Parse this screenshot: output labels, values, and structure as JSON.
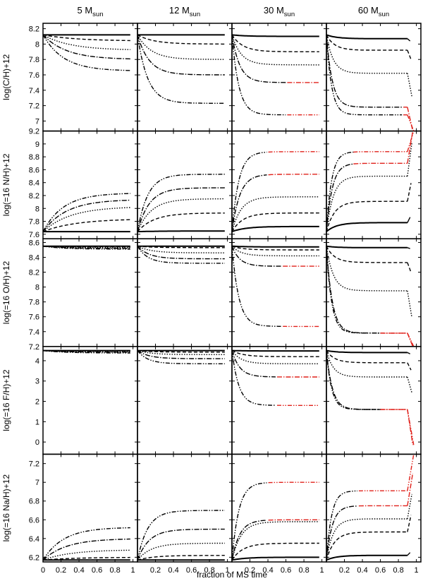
{
  "chart_data": {
    "type": "line",
    "xlabel": "fraction of MS time",
    "columns": [
      {
        "label": "5 M",
        "sub": "sun"
      },
      {
        "label": "12 M",
        "sub": "sun"
      },
      {
        "label": "30 M",
        "sub": "sun"
      },
      {
        "label": "60 M",
        "sub": "sun"
      }
    ],
    "x_ticks": [
      "0",
      "0.2",
      "0.4",
      "0.6",
      "0.8",
      "1"
    ],
    "x_range": [
      0,
      1.05
    ],
    "grid": false,
    "colors": {
      "standard": "#000000",
      "highlight": "#e0201a"
    },
    "line_styles": [
      "solid",
      "dashed",
      "dotted",
      "dashdot",
      "dashdotdot"
    ],
    "rows": [
      {
        "ylabel": "log(C/H)+12",
        "ylim": [
          6.87,
          8.27
        ],
        "yticks": [
          "7",
          "7.2",
          "7.4",
          "7.6",
          "7.8",
          "8",
          "8.2"
        ],
        "panels": [
          {
            "init": 8.12,
            "finals": [
              8.12,
              8.04,
              7.92,
              7.8,
              7.65
            ],
            "red_from": null
          },
          {
            "init": 8.12,
            "finals": [
              8.12,
              8.0,
              7.8,
              7.6,
              7.23
            ],
            "red_from": null
          },
          {
            "init": 8.12,
            "finals": [
              8.1,
              7.9,
              7.73,
              7.5,
              7.08
            ],
            "red_from": 0.6
          },
          {
            "init": 8.12,
            "finals": [
              8.07,
              7.92,
              7.62,
              7.18,
              7.08
            ],
            "red_from": 0.85
          }
        ]
      },
      {
        "ylabel": "log(=16 N/H)+12",
        "ylim": [
          7.53,
          9.2
        ],
        "yticks": [
          "7.6",
          "7.8",
          "8",
          "8.2",
          "8.4",
          "8.6",
          "8.8",
          "9",
          "9.2"
        ],
        "panels": [
          {
            "init": 7.64,
            "finals": [
              7.64,
              7.84,
              8.03,
              8.14,
              8.24
            ],
            "red_from": null
          },
          {
            "init": 7.64,
            "finals": [
              7.65,
              7.93,
              8.15,
              8.32,
              8.53
            ],
            "red_from": null
          },
          {
            "init": 7.64,
            "finals": [
              7.72,
              7.93,
              8.18,
              8.53,
              8.88
            ],
            "red_from": 0.4
          },
          {
            "init": 7.64,
            "finals": [
              7.78,
              8.11,
              8.5,
              8.7,
              8.88
            ],
            "red_from": 0.3
          }
        ]
      },
      {
        "ylabel": "log(=16 O/H)+12",
        "ylim": [
          7.2,
          8.65
        ],
        "yticks": [
          "7.2",
          "7.4",
          "7.6",
          "7.8",
          "8",
          "8.2",
          "8.4",
          "8.6"
        ],
        "panels": [
          {
            "init": 8.55,
            "finals": [
              8.55,
              8.54,
              8.53,
              8.52,
              8.51
            ],
            "red_from": null
          },
          {
            "init": 8.55,
            "finals": [
              8.55,
              8.53,
              8.46,
              8.38,
              8.32
            ],
            "red_from": null
          },
          {
            "init": 8.55,
            "finals": [
              8.54,
              8.5,
              8.42,
              8.28,
              7.47
            ],
            "red_from": 0.55
          },
          {
            "init": 8.55,
            "finals": [
              8.53,
              8.33,
              7.95,
              7.38,
              7.38
            ],
            "red_from": 0.6
          }
        ]
      },
      {
        "ylabel": "log(=16 F/H)+12",
        "ylim": [
          -0.6,
          4.7
        ],
        "yticks": [
          "0",
          "1",
          "2",
          "3",
          "4"
        ],
        "panels": [
          {
            "init": 4.5,
            "finals": [
              4.5,
              4.48,
              4.45,
              4.42,
              4.38
            ],
            "red_from": null
          },
          {
            "init": 4.5,
            "finals": [
              4.5,
              4.42,
              4.3,
              4.1,
              3.85
            ],
            "red_from": null
          },
          {
            "init": 4.5,
            "finals": [
              4.48,
              4.2,
              3.85,
              3.2,
              1.8
            ],
            "red_from": 0.5
          },
          {
            "init": 4.5,
            "finals": [
              4.4,
              3.9,
              3.2,
              1.6,
              1.6
            ],
            "red_from": 0.6
          }
        ]
      },
      {
        "ylabel": "log(=16 Na/H)+12",
        "ylim": [
          6.15,
          7.3
        ],
        "yticks": [
          "6.2",
          "6.4",
          "6.6",
          "6.8",
          "7",
          "7.2"
        ],
        "panels": [
          {
            "init": 6.17,
            "finals": [
              6.17,
              6.2,
              6.28,
              6.4,
              6.52
            ],
            "red_from": null
          },
          {
            "init": 6.17,
            "finals": [
              6.17,
              6.22,
              6.35,
              6.5,
              6.7
            ],
            "red_from": null
          },
          {
            "init": 6.17,
            "finals": [
              6.2,
              6.35,
              6.58,
              6.6,
              7.0
            ],
            "red_from": 0.4
          },
          {
            "init": 6.17,
            "finals": [
              6.22,
              6.47,
              6.61,
              6.75,
              6.91
            ],
            "red_from": 0.35
          }
        ]
      }
    ]
  }
}
